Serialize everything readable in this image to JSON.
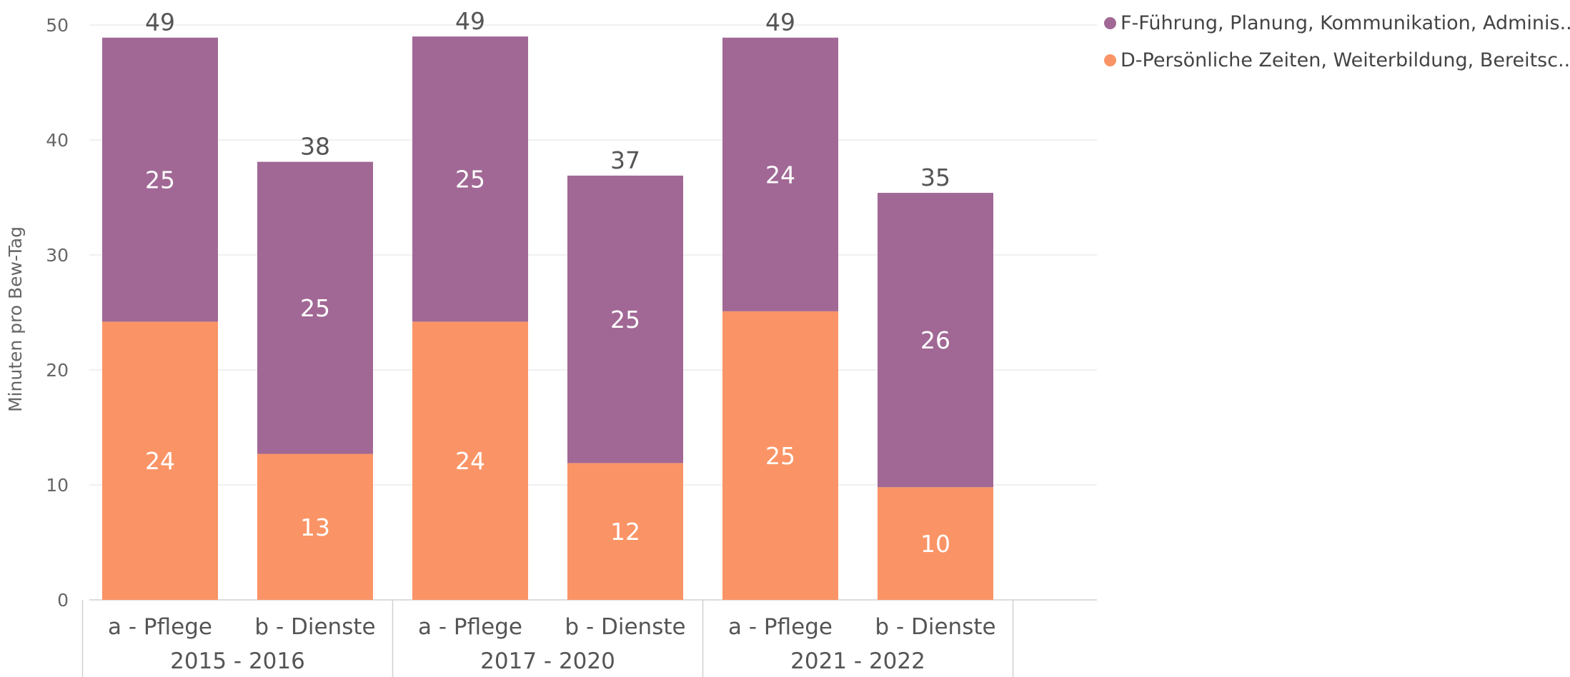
{
  "chart_data": {
    "type": "bar",
    "stacked": true,
    "ylabel": "Minuten pro Bew-Tag",
    "ylim": [
      0,
      50
    ],
    "yticks": [
      0,
      10,
      20,
      30,
      40,
      50
    ],
    "grid": true,
    "legend_position": "top-right",
    "groups": [
      {
        "label": "2015 - 2016",
        "categories": [
          "a - Pflege",
          "b - Dienste"
        ]
      },
      {
        "label": "2017 - 2020",
        "categories": [
          "a - Pflege",
          "b - Dienste"
        ]
      },
      {
        "label": "2021 - 2022",
        "categories": [
          "a - Pflege",
          "b - Dienste"
        ]
      }
    ],
    "series": [
      {
        "name": "D-Persönliche Zeiten, Weiterbildung, Bereitsc...",
        "color": "#FA9466",
        "values": [
          24.2,
          12.7,
          24.2,
          11.9,
          25.1,
          9.8
        ],
        "labels": [
          "24",
          "13",
          "24",
          "12",
          "25",
          "10"
        ]
      },
      {
        "name": "F-Führung, Planung, Kommunikation, Adminis...",
        "color": "#A16895",
        "values": [
          24.7,
          25.4,
          24.8,
          25.0,
          23.8,
          25.6
        ],
        "labels": [
          "25",
          "25",
          "25",
          "25",
          "24",
          "26"
        ]
      }
    ],
    "totals": [
      "49",
      "38",
      "49",
      "37",
      "49",
      "35"
    ],
    "legend_order": [
      1,
      0
    ]
  }
}
